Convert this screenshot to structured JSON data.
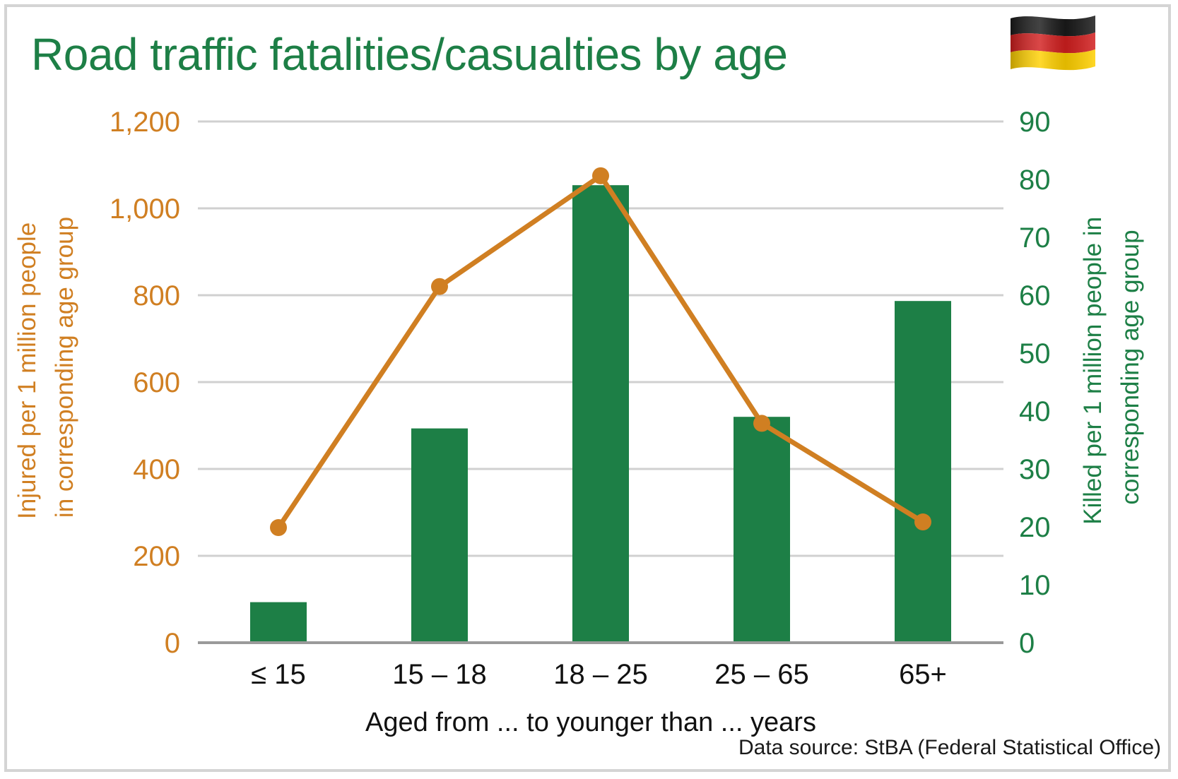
{
  "title": "Road traffic fatalities/casualties by age",
  "source": "Data source: StBA (Federal Statistical Office)",
  "colors": {
    "injured": "#d07f22",
    "killed": "#1d7f46",
    "grid": "#d0d0d0",
    "axis": "#9a9a9a"
  },
  "icon": "german-flag-icon",
  "chart_data": {
    "type": "bar",
    "categories": [
      "≤ 15",
      "15 – 18",
      "18 – 25",
      "25 – 65",
      "65+"
    ],
    "xlabel": "Aged from ... to younger than ... years",
    "y_left": {
      "label_lines": [
        "Injured per 1 million people",
        "in corresponding age group"
      ],
      "ylim": [
        0,
        1200
      ],
      "ticks": [
        "0",
        "200",
        "400",
        "600",
        "800",
        "1,000",
        "1,200"
      ],
      "tick_values": [
        0,
        200,
        400,
        600,
        800,
        1000,
        1200
      ]
    },
    "y_right": {
      "label_lines": [
        "Killed per 1 million people in",
        "corresponding age group"
      ],
      "ylim": [
        0,
        90
      ],
      "ticks": [
        "0",
        "10",
        "20",
        "30",
        "40",
        "50",
        "60",
        "70",
        "80",
        "90"
      ],
      "tick_values": [
        0,
        10,
        20,
        30,
        40,
        50,
        60,
        70,
        80,
        90
      ]
    },
    "series": [
      {
        "kind": "bar",
        "axis": "right",
        "values": [
          7,
          37,
          79,
          39,
          59
        ]
      },
      {
        "kind": "line",
        "axis": "left",
        "values": [
          265,
          820,
          1075,
          505,
          278
        ]
      }
    ],
    "grid": true,
    "legend": "none"
  }
}
